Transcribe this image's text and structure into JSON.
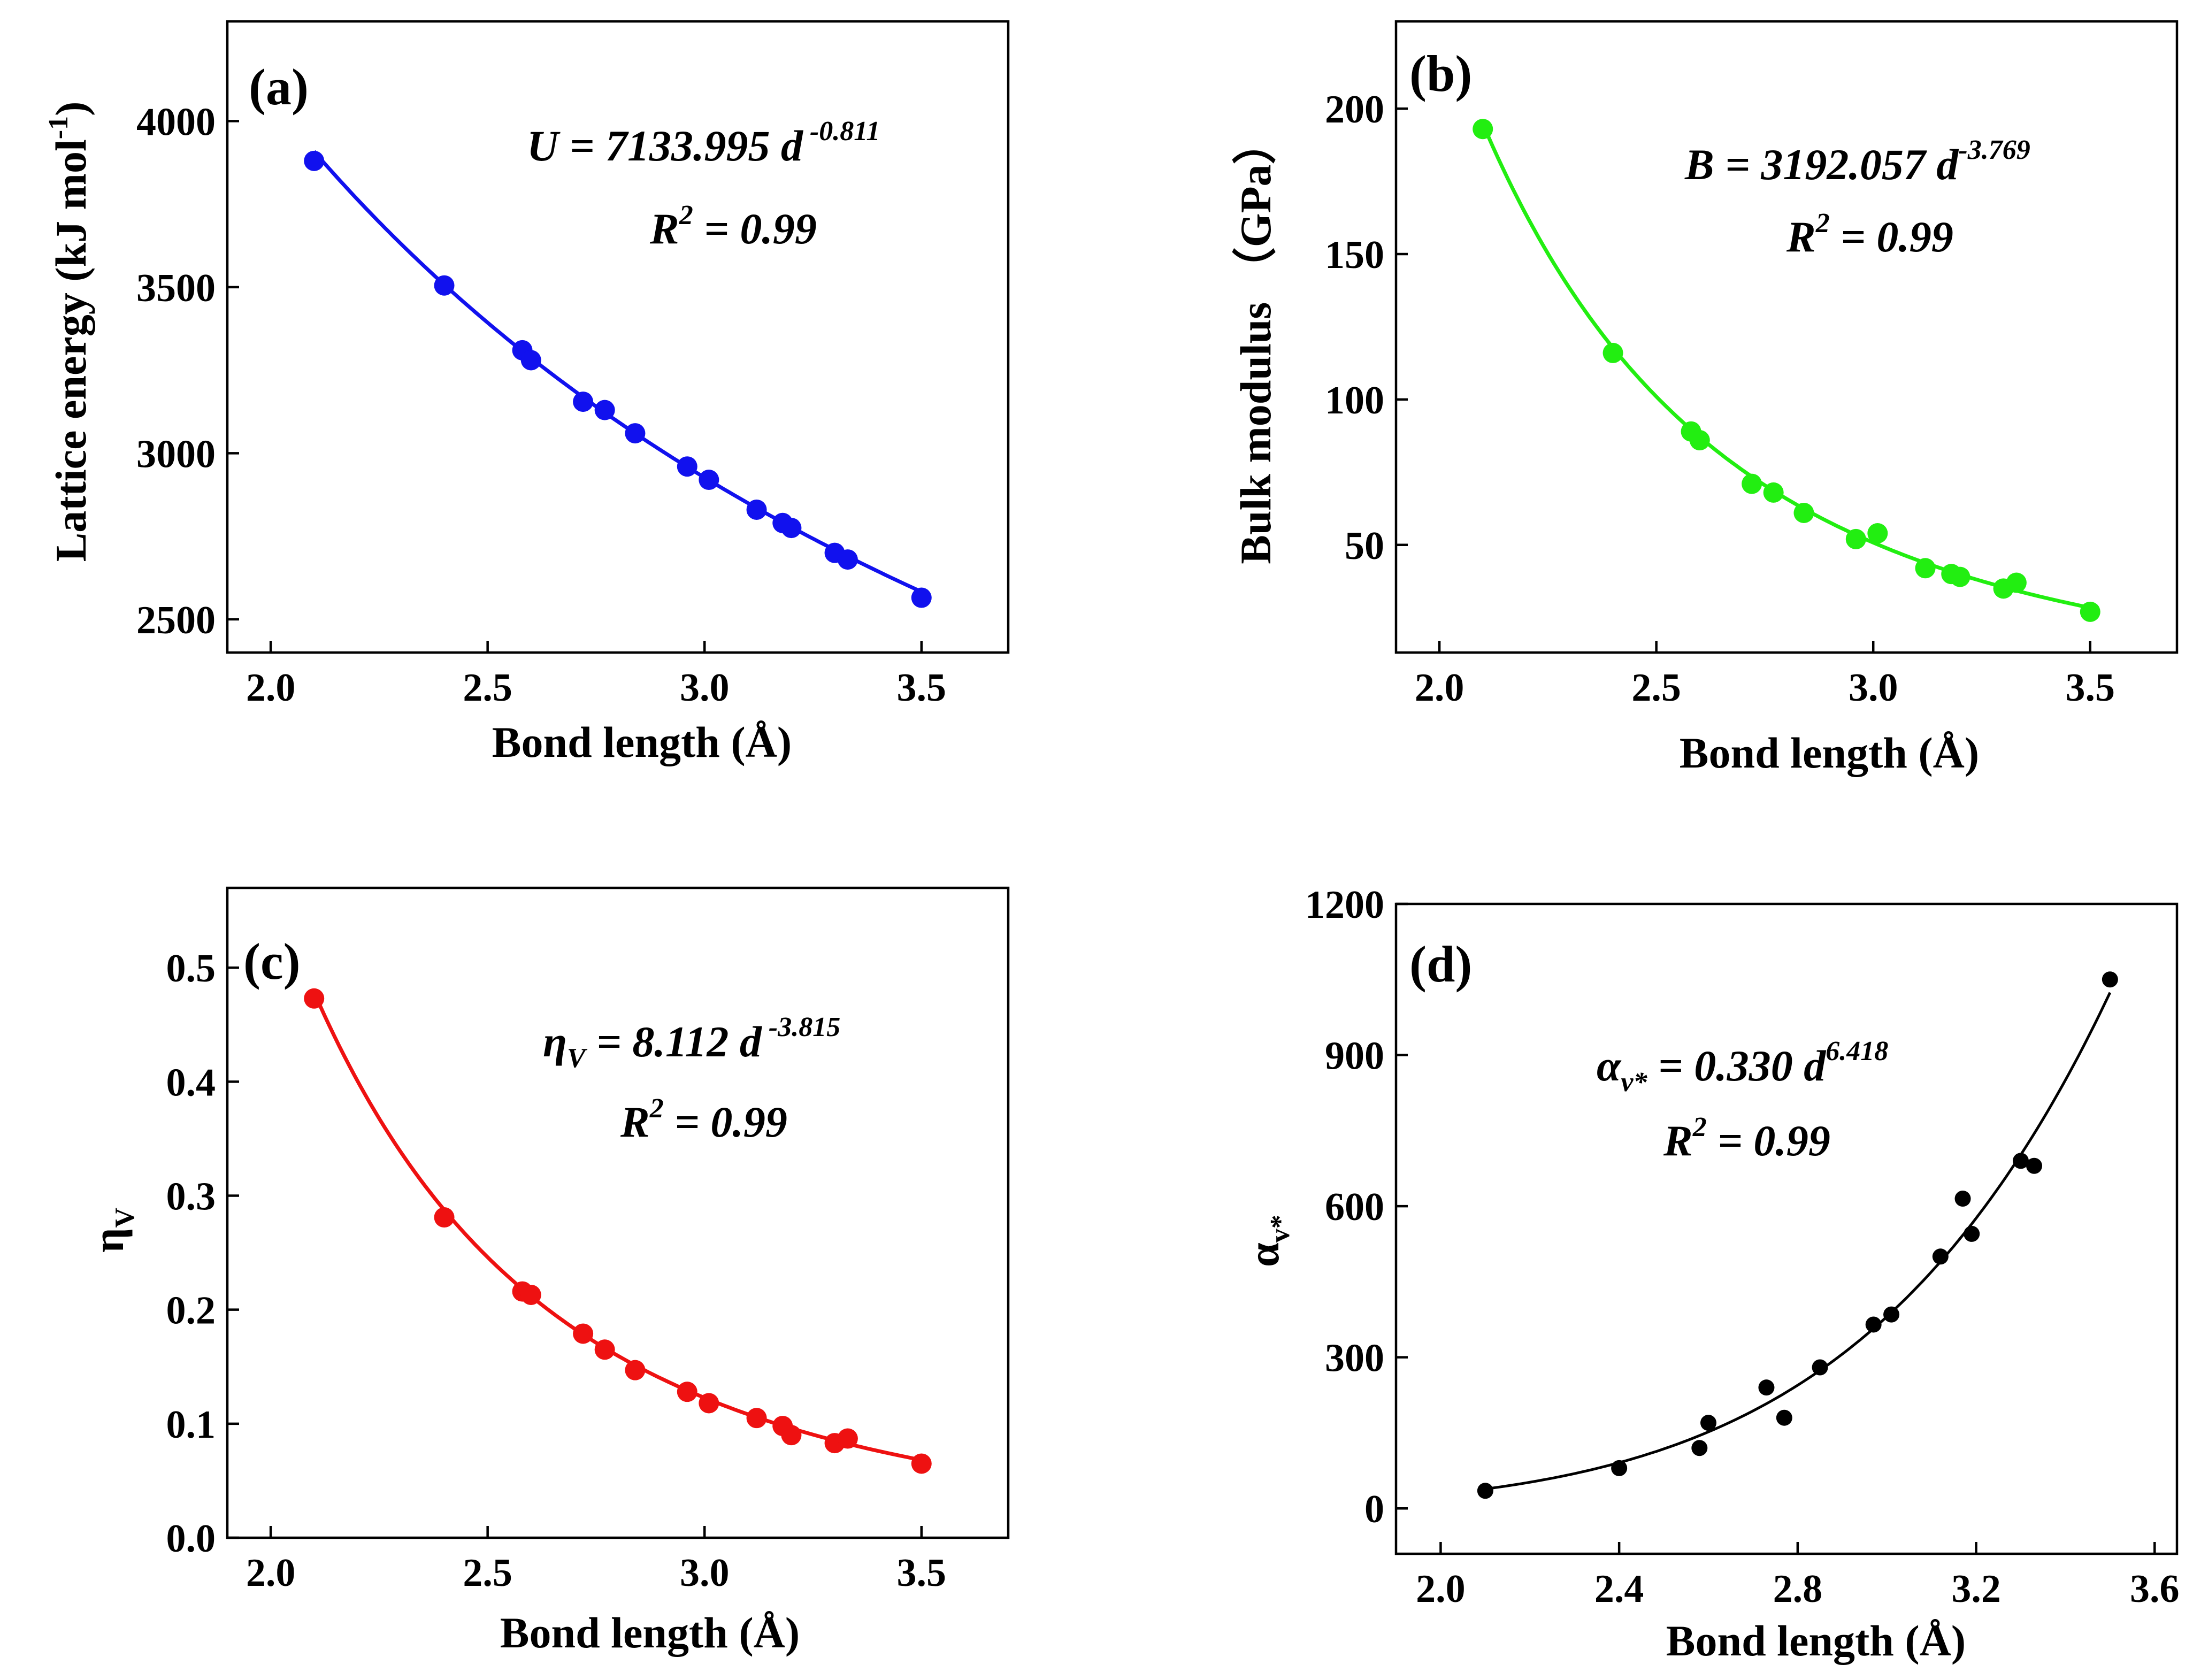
{
  "colors": {
    "a": "#1111ee",
    "b": "#22ee11",
    "c": "#ee1111",
    "d": "#000000"
  },
  "chart_data": [
    {
      "id": "a",
      "type": "scatter",
      "panel_label": "(a)",
      "xlabel": "Bond length (Å)",
      "ylabel_main": "Lattice energy (kJ mol",
      "ylabel_sup": "-1",
      "ylabel_end": ")",
      "xlim": [
        1.9,
        3.7
      ],
      "ylim": [
        2400,
        4300
      ],
      "xticks": [
        2.0,
        2.5,
        3.0,
        3.5
      ],
      "xtick_labels": [
        "2.0",
        "2.5",
        "3.0",
        "3.5"
      ],
      "yticks": [
        2500,
        3000,
        3500,
        4000
      ],
      "ytick_labels": [
        "2500",
        "3000",
        "3500",
        "4000"
      ],
      "equation_main": "U = 7133.995 d",
      "equation_exp": " -0.811",
      "r2_main": "R",
      "r2_sup": "2",
      "r2_end": " = 0.99",
      "fit": {
        "coef": 7133.995,
        "exp": -0.811,
        "x_range": [
          2.1,
          3.5
        ]
      },
      "x": [
        2.1,
        2.4,
        2.58,
        2.6,
        2.72,
        2.77,
        2.84,
        2.96,
        3.01,
        3.12,
        3.18,
        3.2,
        3.3,
        3.33,
        3.5
      ],
      "y": [
        3880,
        3505,
        3310,
        3280,
        3155,
        3130,
        3060,
        2960,
        2920,
        2830,
        2790,
        2775,
        2700,
        2680,
        2565
      ]
    },
    {
      "id": "b",
      "type": "scatter",
      "panel_label": "(b)",
      "xlabel": "Bond length (Å)",
      "ylabel_main": "Bulk modulus （GPa）",
      "xlim": [
        1.9,
        3.7
      ],
      "ylim": [
        13,
        230
      ],
      "xticks": [
        2.0,
        2.5,
        3.0,
        3.5
      ],
      "xtick_labels": [
        "2.0",
        "2.5",
        "3.0",
        "3.5"
      ],
      "yticks": [
        50,
        100,
        150,
        200
      ],
      "ytick_labels": [
        "50",
        "100",
        "150",
        "200"
      ],
      "equation_main": "B = 3192.057 d",
      "equation_exp": "-3.769",
      "r2_main": "R",
      "r2_sup": "2",
      "r2_end": " = 0.99",
      "fit": {
        "coef": 3192.057,
        "exp": -3.769,
        "x_range": [
          2.1,
          3.5
        ]
      },
      "x": [
        2.1,
        2.4,
        2.58,
        2.6,
        2.72,
        2.77,
        2.84,
        2.96,
        3.01,
        3.12,
        3.18,
        3.2,
        3.3,
        3.33,
        3.5
      ],
      "y": [
        193,
        116,
        89,
        86,
        71,
        68,
        61,
        52,
        54,
        42,
        40,
        39,
        35,
        37,
        27
      ]
    },
    {
      "id": "c",
      "type": "scatter",
      "panel_label": "(c)",
      "xlabel": "Bond length (Å)",
      "ylabel_main": "η",
      "ylabel_sub": "V",
      "xlim": [
        1.9,
        3.7
      ],
      "ylim": [
        0.0,
        0.57
      ],
      "xticks": [
        2.0,
        2.5,
        3.0,
        3.5
      ],
      "xtick_labels": [
        "2.0",
        "2.5",
        "3.0",
        "3.5"
      ],
      "yticks": [
        0.0,
        0.1,
        0.2,
        0.3,
        0.4,
        0.5
      ],
      "ytick_labels": [
        "0.0",
        "0.1",
        "0.2",
        "0.3",
        "0.4",
        "0.5"
      ],
      "equation_main": "η",
      "equation_sub": "V",
      "equation_mid": " = 8.112 d",
      "equation_exp": " -3.815",
      "r2_main": "R",
      "r2_sup": "2",
      "r2_end": " = 0.99",
      "fit": {
        "coef": 8.112,
        "exp": -3.815,
        "x_range": [
          2.1,
          3.5
        ]
      },
      "x": [
        2.1,
        2.4,
        2.58,
        2.6,
        2.72,
        2.77,
        2.84,
        2.96,
        3.01,
        3.12,
        3.18,
        3.2,
        3.3,
        3.33,
        3.5
      ],
      "y": [
        0.473,
        0.281,
        0.216,
        0.213,
        0.179,
        0.165,
        0.147,
        0.128,
        0.118,
        0.105,
        0.098,
        0.09,
        0.083,
        0.087,
        0.065
      ]
    },
    {
      "id": "d",
      "type": "scatter",
      "panel_label": "(d)",
      "xlabel": "Bond length (Å)",
      "ylabel_main": "α",
      "ylabel_sub": "v*",
      "xlim": [
        1.9,
        3.65
      ],
      "ylim": [
        -90,
        1200
      ],
      "xticks": [
        2.0,
        2.4,
        2.8,
        3.2,
        3.6
      ],
      "xtick_labels": [
        "2.0",
        "2.4",
        "2.8",
        "3.2",
        "3.6"
      ],
      "yticks": [
        0,
        300,
        600,
        900,
        1200
      ],
      "ytick_labels": [
        "0",
        "300",
        "600",
        "900",
        "1200"
      ],
      "equation_main": "α",
      "equation_sub": "v*",
      "equation_mid": " = 0.330 d",
      "equation_exp": "6.418",
      "r2_main": "R",
      "r2_sup": "2",
      "r2_end": " = 0.99",
      "fit": {
        "coef": 0.33,
        "exp": 6.418,
        "x_range": [
          2.1,
          3.5
        ]
      },
      "x": [
        2.1,
        2.4,
        2.58,
        2.6,
        2.73,
        2.77,
        2.85,
        2.97,
        3.01,
        3.12,
        3.17,
        3.19,
        3.3,
        3.33,
        3.5
      ],
      "y": [
        35,
        80,
        120,
        170,
        240,
        180,
        280,
        365,
        385,
        500,
        615,
        545,
        690,
        680,
        1050
      ]
    }
  ]
}
